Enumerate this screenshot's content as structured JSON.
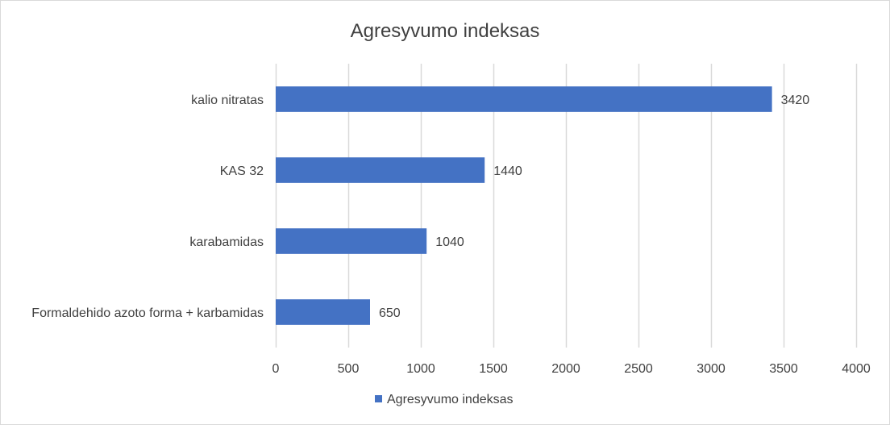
{
  "chart_data": {
    "type": "bar",
    "orientation": "horizontal",
    "title": "Agresyvumo indeksas",
    "categories": [
      "kalio nitratas",
      "KAS 32",
      "karabamidas",
      "Formaldehido azoto forma + karbamidas"
    ],
    "series": [
      {
        "name": "Agresyvumo indeksas",
        "values": [
          3420,
          1440,
          1040,
          650
        ],
        "color": "#4472c4"
      }
    ],
    "xlim": [
      0,
      4000
    ],
    "xticks": [
      0,
      500,
      1000,
      1500,
      2000,
      2500,
      3000,
      3500,
      4000
    ],
    "grid": "vertical",
    "gridColor": "#d9d9d9",
    "legend": "bottom",
    "data_labels": true
  }
}
